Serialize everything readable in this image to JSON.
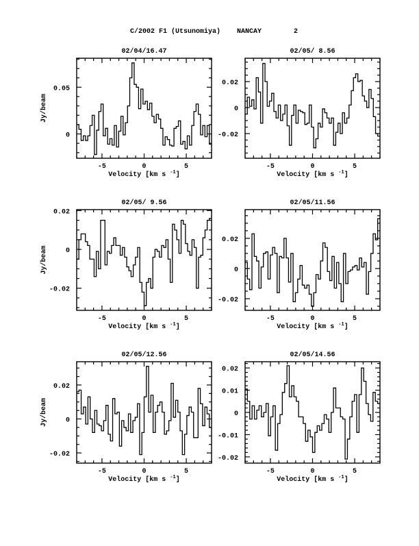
{
  "header": {
    "object": "C/2002 F1 (Utsunomiya)",
    "telescope": "NANCAY",
    "page": "2"
  },
  "chart_data": [
    {
      "type": "line",
      "title": "02/04/16.47",
      "xlabel": "Velocity [km s",
      "xlabel_sup": "-1",
      "xlabel_end": "]",
      "ylabel": "Jy/beam",
      "xlim": [
        -8,
        8
      ],
      "ylim": [
        -0.026,
        0.081
      ],
      "xticks": [
        "-5",
        "0",
        "5"
      ],
      "xtick_values": [
        -5,
        0,
        5
      ],
      "yticks": [
        "0",
        "0.05"
      ],
      "ytick_values": [
        0,
        0.05
      ],
      "yminor": 0.01,
      "values": [
        0.01,
        0.005,
        -0.007,
        -0.002,
        -0.007,
        -0.002,
        0.009,
        0.02,
        -0.022,
        0.004,
        0.024,
        0.032,
        -0.002,
        0.006,
        -0.011,
        -0.005,
        -0.012,
        0.009,
        -0.014,
        0.003,
        0.019,
        -0.001,
        0.012,
        0.03,
        0.06,
        0.076,
        0.053,
        0.05,
        0.027,
        0.048,
        0.032,
        0.035,
        0.026,
        0.033,
        0.019,
        0.012,
        0.021,
        0.016,
        0.006,
        -0.012,
        -0.003,
        -0.006,
        -0.012,
        -0.013,
        0.006,
        0.008,
        0.014,
        -0.011,
        -0.008,
        -0.016,
        -0.002,
        -0.012,
        0.009,
        0.024,
        0.032,
        0.021,
        -0.001,
        0.009,
        -0.003,
        0.009,
        -0.011
      ]
    },
    {
      "type": "line",
      "title": "02/05/ 8.56",
      "xlabel": "Velocity [km s",
      "xlabel_sup": "-1",
      "xlabel_end": "]",
      "ylabel": "",
      "xlim": [
        -8,
        8
      ],
      "ylim": [
        -0.039,
        0.038
      ],
      "xticks": [
        "-5",
        "0",
        "5"
      ],
      "xtick_values": [
        -5,
        0,
        5
      ],
      "yticks": [
        "-0.02",
        "0",
        "0.02"
      ],
      "ytick_values": [
        -0.02,
        0,
        0.02
      ],
      "yminor": 0.005,
      "values": [
        -0.005,
        0.008,
        0.001,
        0.006,
        -0.001,
        0.023,
        0.012,
        -0.012,
        0.034,
        0.02,
        0.001,
        0.005,
        0.011,
        -0.003,
        -0.008,
        0.002,
        -0.01,
        -0.005,
        0.002,
        -0.014,
        -0.029,
        -0.006,
        0.002,
        -0.012,
        -0.002,
        -0.003,
        -0.004,
        -0.013,
        -0.012,
        0.002,
        -0.015,
        -0.031,
        -0.024,
        -0.012,
        -0.015,
        -0.001,
        -0.004,
        -0.008,
        -0.012,
        -0.008,
        -0.029,
        -0.019,
        -0.012,
        -0.02,
        -0.004,
        -0.012,
        -0.008,
        0.002,
        0.013,
        0.023,
        0.026,
        0.02,
        0.021,
        0.009,
        0.005,
        0.0,
        0.014,
        0.007,
        -0.007,
        -0.02,
        -0.022
      ]
    },
    {
      "type": "line",
      "title": "02/05/ 9.56",
      "xlabel": "Velocity [km s",
      "xlabel_sup": "-1",
      "xlabel_end": "]",
      "ylabel": "Jy/beam",
      "xlim": [
        -8,
        8
      ],
      "ylim": [
        -0.0314,
        0.0205
      ],
      "xticks": [
        "-5",
        "0",
        "5"
      ],
      "xtick_values": [
        -5,
        0,
        5
      ],
      "yticks": [
        "-0.02",
        "0",
        "0.02"
      ],
      "ytick_values": [
        -0.02,
        0,
        0.02
      ],
      "yminor": 0.005,
      "values": [
        -0.005,
        0.005,
        0.008,
        0.008,
        0.004,
        0.002,
        -0.005,
        -0.005,
        -0.014,
        -0.001,
        -0.01,
        0.015,
        0.015,
        -0.008,
        -0.001,
        -0.002,
        0.002,
        0.006,
        0.002,
        0.002,
        -0.003,
        0.001,
        -0.004,
        -0.009,
        -0.011,
        -0.014,
        -0.008,
        -0.004,
        0.001,
        -0.017,
        -0.022,
        -0.029,
        -0.017,
        -0.015,
        -0.02,
        -0.004,
        0.0,
        -0.001,
        -0.004,
        0.002,
        0.001,
        0.005,
        -0.005,
        -0.017,
        0.013,
        0.01,
        0.005,
        -0.002,
        0.015,
        0.013,
        0.003,
        -0.001,
        -0.003,
        0.005,
        0.001,
        -0.02,
        -0.004,
        -0.003,
        0.006,
        0.01,
        0.015,
        0.016
      ]
    },
    {
      "type": "line",
      "title": "02/05/11.56",
      "xlabel": "Velocity [km s",
      "xlabel_sup": "-1",
      "xlabel_end": "]",
      "ylabel": "",
      "xlim": [
        -8,
        8
      ],
      "ylim": [
        -0.0277,
        0.039
      ],
      "xticks": [
        "-5",
        "0",
        "5"
      ],
      "xtick_values": [
        -5,
        0,
        5
      ],
      "yticks": [
        "-0.02",
        "0",
        "0.02"
      ],
      "ytick_values": [
        -0.02,
        0,
        0.02
      ],
      "yminor": 0.005,
      "values": [
        0.004,
        -0.007,
        -0.014,
        0.023,
        0.008,
        0.005,
        -0.013,
        0.001,
        0.01,
        0.011,
        -0.007,
        0.009,
        0.014,
        0.01,
        -0.016,
        0.008,
        0.007,
        0.02,
        0.007,
        -0.009,
        0.01,
        -0.022,
        -0.016,
        -0.007,
        0.002,
        -0.011,
        -0.013,
        -0.011,
        -0.017,
        -0.025,
        -0.016,
        -0.004,
        -0.007,
        0.005,
        0.017,
        0.014,
        -0.002,
        -0.008,
        0.008,
        -0.013,
        0.004,
        -0.01,
        -0.022,
        0.01,
        -0.01,
        -0.002,
        -0.001,
        0.001,
        0.002,
        -0.001,
        0.007,
        0.001,
        0.004,
        -0.017,
        -0.002,
        0.01,
        0.023,
        0.019,
        0.033
      ]
    },
    {
      "type": "line",
      "title": "02/05/12.56",
      "xlabel": "Velocity [km s",
      "xlabel_sup": "-1",
      "xlabel_end": "]",
      "ylabel": "Jy/beam",
      "xlim": [
        -8,
        8
      ],
      "ylim": [
        -0.026,
        0.0337
      ],
      "xticks": [
        "-5",
        "0",
        "5"
      ],
      "xtick_values": [
        -5,
        0,
        5
      ],
      "yticks": [
        "-0.02",
        "0",
        "0.02"
      ],
      "ytick_values": [
        -0.02,
        0,
        0.02
      ],
      "yminor": 0.005,
      "values": [
        0.016,
        0.017,
        0.003,
        0.007,
        -0.003,
        0.013,
        0.0,
        -0.008,
        0.005,
        -0.003,
        -0.004,
        -0.007,
        -0.001,
        0.008,
        -0.009,
        -0.013,
        0.012,
        0.003,
        0.004,
        -0.016,
        -0.001,
        -0.005,
        -0.007,
        0.003,
        -0.008,
        -0.001,
        0.001,
        0.009,
        -0.021,
        -0.008,
        0.013,
        0.031,
        0.004,
        0.014,
        -0.008,
        0.004,
        0.008,
        0.01,
        0.004,
        -0.009,
        -0.007,
        -0.001,
        0.021,
        0.001,
        0.011,
        0.004,
        -0.007,
        -0.021,
        -0.009,
        0.002,
        0.007,
        0.004,
        -0.011,
        -0.011,
        0.018,
        0.009,
        -0.004,
        0.007,
        0.003,
        -0.005
      ]
    },
    {
      "type": "line",
      "title": "02/05/14.56",
      "xlabel": "Velocity [km s",
      "xlabel_sup": "-1",
      "xlabel_end": "]",
      "ylabel": "",
      "xlim": [
        -8,
        8
      ],
      "ylim": [
        -0.0228,
        0.0228
      ],
      "xticks": [
        "-5",
        "0",
        "5"
      ],
      "xtick_values": [
        -5,
        0,
        5
      ],
      "yticks": [
        "-0.02",
        "-0.01",
        "0",
        "0.01",
        "0.02"
      ],
      "ytick_values": [
        -0.02,
        -0.01,
        0,
        0.01,
        0.02
      ],
      "yminor": 0.002,
      "values": [
        0.0105,
        0.005,
        -0.003,
        0.003,
        -0.003,
        0.001,
        0.003,
        -0.002,
        0.0,
        0.004,
        -0.0105,
        -0.002,
        0.003,
        -0.017,
        -0.005,
        -0.001,
        0.009,
        0.013,
        0.021,
        0.007,
        0.012,
        0.007,
        0.005,
        -0.002,
        -0.002,
        -0.005,
        -0.013,
        -0.008,
        -0.011,
        -0.018,
        -0.009,
        -0.006,
        -0.008,
        -0.005,
        -0.001,
        -0.003,
        -0.009,
        0.0,
        0.011,
        0.002,
        0.002,
        -0.002,
        -0.003,
        -0.021,
        -0.012,
        -0.002,
        0.005,
        0.008,
        -0.009,
        0.008,
        0.02,
        0.014,
        0.004,
        -0.001,
        -0.004,
        0.009,
        0.005,
        0.004
      ]
    }
  ]
}
